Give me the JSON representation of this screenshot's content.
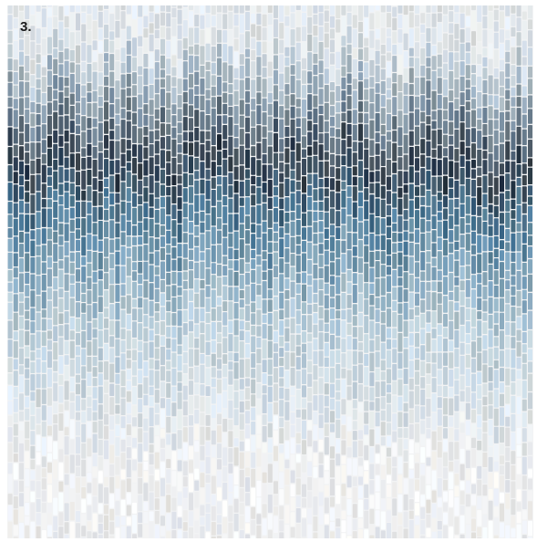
{
  "figure": {
    "label": "3."
  },
  "mosaic": {
    "palette": {
      "top": "#dfe5ea",
      "band": "#2b3644",
      "band_blue": "#4c7b98",
      "mid": "#a9c3d2",
      "bottom": "#eeeff1",
      "grout": "#f2f3f4"
    }
  }
}
